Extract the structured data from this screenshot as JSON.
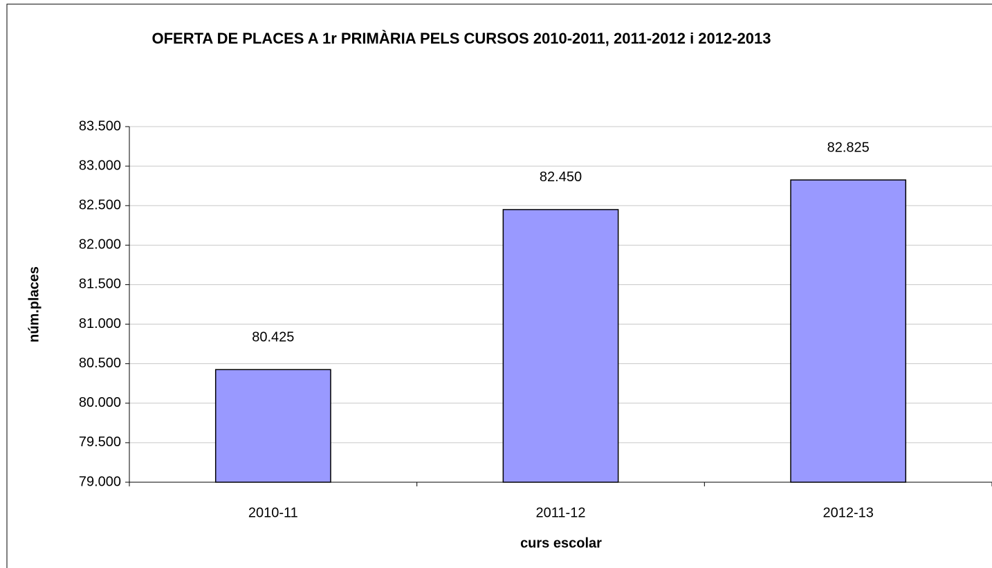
{
  "chart_data": {
    "type": "bar",
    "title": "OFERTA DE PLACES A 1r PRIMÀRIA PELS CURSOS 2010-2011, 2011-2012 i 2012-2013",
    "x_label": "curs escolar",
    "y_label": "núm.places",
    "categories": [
      "2010-11",
      "2011-12",
      "2012-13"
    ],
    "values": [
      80425,
      82450,
      82825
    ],
    "value_labels": [
      "80.425",
      "82.450",
      "82.825"
    ],
    "color": "#9999ff",
    "ylim": [
      79000,
      83500
    ],
    "yticks": [
      {
        "value": 79000,
        "label": "79.000"
      },
      {
        "value": 79500,
        "label": "79.500"
      },
      {
        "value": 80000,
        "label": "80.000"
      },
      {
        "value": 80500,
        "label": "80.500"
      },
      {
        "value": 81000,
        "label": "81.000"
      },
      {
        "value": 81500,
        "label": "81.500"
      },
      {
        "value": 82000,
        "label": "82.000"
      },
      {
        "value": 82500,
        "label": "82.500"
      },
      {
        "value": 83000,
        "label": "83.000"
      },
      {
        "value": 83500,
        "label": "83.500"
      }
    ],
    "grid": true
  }
}
